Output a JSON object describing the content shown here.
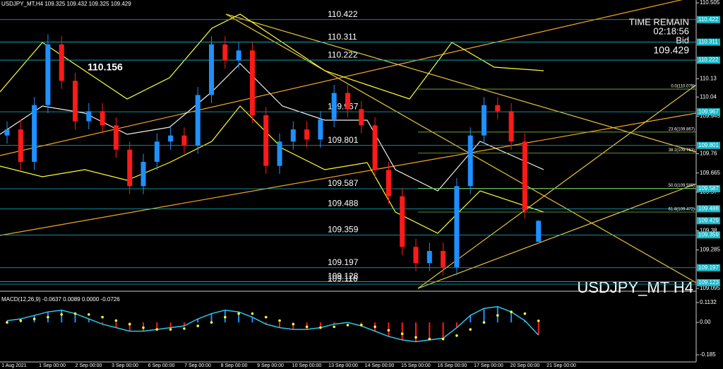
{
  "chart_data": {
    "type": "candlestick",
    "header": "USDJPY_MT,H4  109.325 109.432 109.325 109.429",
    "info": {
      "label": "TIME REMAIN",
      "time": "02:18:56",
      "bid_label": "Bid",
      "bid": "109.429"
    },
    "watermark": "USDJPY_MT H4",
    "ylim": [
      109.095,
      110.505
    ],
    "yticks": [
      110.505,
      110.13,
      110.04,
      109.945,
      109.76,
      109.665,
      109.57,
      109.38,
      109.285,
      109.095
    ],
    "level_ticks": [
      110.422,
      110.311,
      110.222,
      109.967,
      109.801,
      109.587,
      109.488,
      109.429,
      109.359,
      109.197,
      109.123
    ],
    "levels": [
      110.422,
      110.311,
      110.222,
      109.967,
      109.801,
      109.587,
      109.488,
      109.359,
      109.197,
      109.128,
      109.116
    ],
    "highlight_level": 110.156,
    "fib": [
      {
        "value": 110.079,
        "label": "0.0(110.079)"
      },
      {
        "value": 109.867,
        "label": "23.6(109.867)"
      },
      {
        "value": 109.763,
        "label": "38.2(109.763)"
      },
      {
        "value": 109.589,
        "label": "50.0(109.589)"
      },
      {
        "value": 109.472,
        "label": "61.8(109.472)"
      }
    ],
    "x_labels": [
      "1 Aug 2021",
      "1 Sep 00:00",
      "2 Sep 00:00",
      "3 Sep 00:00",
      "6 Sep 00:00",
      "7 Sep 00:00",
      "8 Sep 00:00",
      "9 Sep 00:00",
      "10 Sep 00:00",
      "13 Sep 00:00",
      "14 Sep 00:00",
      "15 Sep 00:00",
      "16 Sep 00:00",
      "17 Sep 00:00",
      "20 Sep 00:00",
      "21 Sep 00:00"
    ],
    "up_color": "#1e90ff",
    "down_color": "#ff1a1a",
    "opens": [
      109.85,
      109.88,
      109.72,
      110.0,
      110.3,
      110.12,
      109.92,
      109.97,
      109.9,
      109.78,
      109.6,
      109.72,
      109.82,
      109.85,
      109.8,
      110.05,
      110.3,
      110.22,
      110.27,
      109.95,
      109.7,
      109.82,
      109.88,
      109.83,
      109.93,
      110.06,
      109.98,
      109.9,
      109.68,
      109.55,
      109.3,
      109.22,
      109.28,
      109.2,
      109.6,
      109.85,
      110.0,
      109.97,
      109.82,
      109.325
    ],
    "highs": [
      109.92,
      109.93,
      110.04,
      110.35,
      110.34,
      110.16,
      110.01,
      110.01,
      109.94,
      109.82,
      109.76,
      109.86,
      109.89,
      109.89,
      110.09,
      110.34,
      110.34,
      110.31,
      110.31,
      109.99,
      109.86,
      109.92,
      109.92,
      109.97,
      110.1,
      110.1,
      110.02,
      109.94,
      109.72,
      109.59,
      109.34,
      109.32,
      109.32,
      109.64,
      109.89,
      110.04,
      110.04,
      110.01,
      109.86,
      109.432
    ],
    "lows": [
      109.81,
      109.68,
      109.68,
      109.96,
      110.08,
      109.88,
      109.88,
      109.86,
      109.74,
      109.56,
      109.56,
      109.68,
      109.78,
      109.76,
      109.76,
      110.01,
      110.18,
      110.18,
      109.91,
      109.66,
      109.66,
      109.78,
      109.79,
      109.79,
      109.89,
      109.94,
      109.86,
      109.64,
      109.51,
      109.26,
      109.18,
      109.18,
      109.16,
      109.16,
      109.56,
      109.81,
      109.93,
      109.78,
      109.44,
      109.325
    ],
    "closes": [
      109.88,
      109.72,
      110.0,
      110.3,
      110.12,
      109.92,
      109.97,
      109.9,
      109.78,
      109.6,
      109.72,
      109.82,
      109.85,
      109.8,
      110.05,
      110.3,
      110.22,
      110.27,
      109.95,
      109.7,
      109.82,
      109.88,
      109.83,
      109.93,
      110.06,
      109.98,
      109.9,
      109.68,
      109.55,
      109.3,
      109.22,
      109.28,
      109.2,
      109.6,
      109.85,
      110.0,
      109.97,
      109.82,
      109.48,
      109.429
    ],
    "macd": {
      "title": "MACD(12,26,9) -0.0637 0.0089 0.0000 -0.0726",
      "ylim": [
        -0.185,
        0.1132
      ],
      "yticks": [
        0.1132,
        {
          "value": 0,
          "label": "0.00"
        },
        -0.185
      ],
      "histogram": [
        0.01,
        0.02,
        0.04,
        0.06,
        0.07,
        0.05,
        0.02,
        -0.01,
        -0.03,
        -0.05,
        -0.05,
        -0.04,
        -0.03,
        -0.02,
        0.02,
        0.05,
        0.07,
        0.06,
        0.03,
        -0.01,
        -0.03,
        -0.04,
        -0.04,
        -0.03,
        -0.01,
        0.0,
        -0.02,
        -0.05,
        -0.08,
        -0.1,
        -0.11,
        -0.1,
        -0.09,
        -0.03,
        0.04,
        0.08,
        0.09,
        0.06,
        0.01,
        -0.0726
      ],
      "signal": [
        0.0,
        0.01,
        0.02,
        0.03,
        0.045,
        0.05,
        0.045,
        0.03,
        0.01,
        -0.01,
        -0.03,
        -0.04,
        -0.04,
        -0.035,
        -0.02,
        0.0,
        0.03,
        0.05,
        0.05,
        0.03,
        0.01,
        -0.01,
        -0.025,
        -0.03,
        -0.025,
        -0.015,
        -0.015,
        -0.025,
        -0.045,
        -0.065,
        -0.085,
        -0.095,
        -0.095,
        -0.075,
        -0.04,
        0.0,
        0.04,
        0.06,
        0.05,
        0.0089
      ]
    }
  }
}
